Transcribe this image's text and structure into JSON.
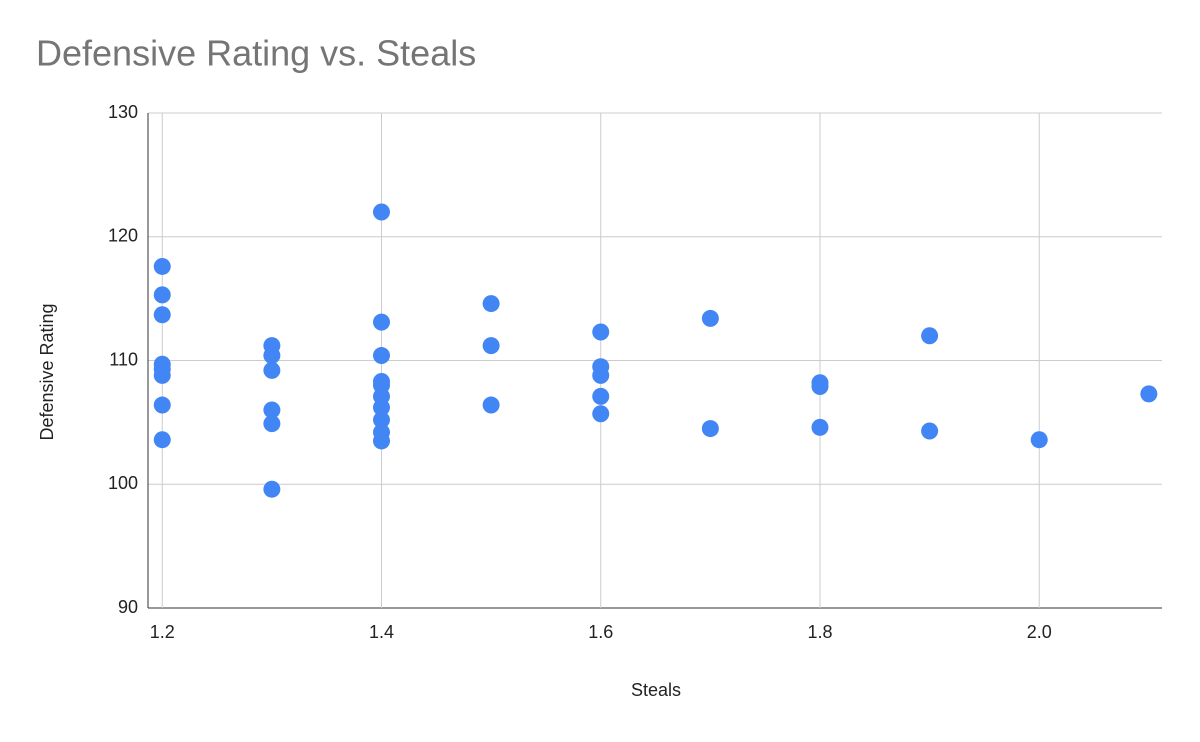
{
  "chart_data": {
    "type": "scatter",
    "title": "Defensive Rating vs. Steals",
    "x_label": "Steals",
    "y_label": "Defensive Rating",
    "color": "#4285f4",
    "grid": true,
    "xlim": [
      1.187,
      2.112
    ],
    "ylim": [
      90,
      130
    ],
    "xticks": [
      1.2,
      1.4,
      1.6,
      1.8,
      {
        "value": 2,
        "label": "2.0"
      }
    ],
    "yticks": [
      90,
      100,
      110,
      120,
      130
    ],
    "x": [
      1.2,
      1.2,
      1.2,
      1.2,
      1.2,
      1.2,
      1.2,
      1.2,
      1.3,
      1.3,
      1.3,
      1.3,
      1.3,
      1.3,
      1.4,
      1.4,
      1.4,
      1.4,
      1.4,
      1.4,
      1.4,
      1.4,
      1.4,
      1.4,
      1.5,
      1.5,
      1.5,
      1.6,
      1.6,
      1.6,
      1.6,
      1.6,
      1.7,
      1.7,
      1.8,
      1.8,
      1.8,
      1.9,
      1.9,
      2.0,
      2.1
    ],
    "values": [
      117.6,
      115.3,
      113.7,
      109.7,
      109.3,
      108.8,
      106.4,
      103.6,
      111.2,
      110.4,
      109.2,
      106.0,
      104.9,
      99.6,
      122.0,
      113.1,
      110.4,
      108.3,
      108.0,
      107.1,
      106.2,
      105.2,
      104.2,
      103.5,
      114.6,
      111.2,
      106.4,
      112.3,
      109.5,
      108.8,
      107.1,
      105.7,
      113.4,
      104.5,
      108.2,
      107.9,
      104.6,
      112.0,
      104.3,
      103.6,
      107.3
    ]
  }
}
